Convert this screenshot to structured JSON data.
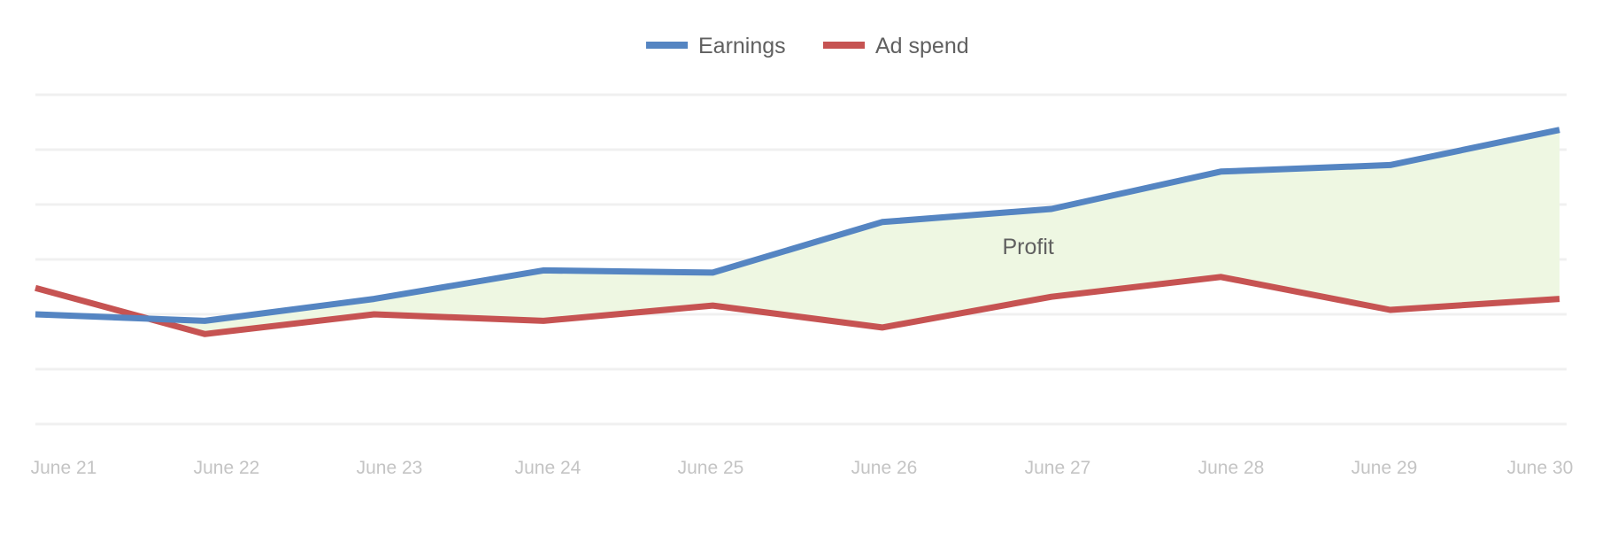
{
  "chart_data": {
    "type": "line",
    "title": "",
    "xlabel": "",
    "ylabel": "",
    "categories": [
      "June 21",
      "June 22",
      "June 23",
      "June 24",
      "June 25",
      "June 26",
      "June 27",
      "June 28",
      "June 29",
      "June 30"
    ],
    "series": [
      {
        "name": "Earnings",
        "color": "#5585c2",
        "values": [
          25,
          23.5,
          28.5,
          35,
          34.5,
          46,
          49,
          57.5,
          59,
          67
        ]
      },
      {
        "name": "Ad spend",
        "color": "#c65352",
        "values": [
          31,
          20.5,
          25,
          23.5,
          27,
          22,
          29,
          33.5,
          26,
          28.5
        ]
      }
    ],
    "ylim": [
      0,
      75
    ],
    "gridlines": [
      0,
      12.5,
      25,
      37.5,
      50,
      62.5,
      75
    ],
    "y_tick_labels_shown": false,
    "grid": true,
    "legend": {
      "position": "top-center"
    },
    "fill_between": {
      "upper": "Earnings",
      "lower": "Ad spend",
      "color": "#eef7e2"
    },
    "annotations": [
      {
        "text": "Profit",
        "x": "June 26",
        "y": 40.5
      }
    ]
  }
}
